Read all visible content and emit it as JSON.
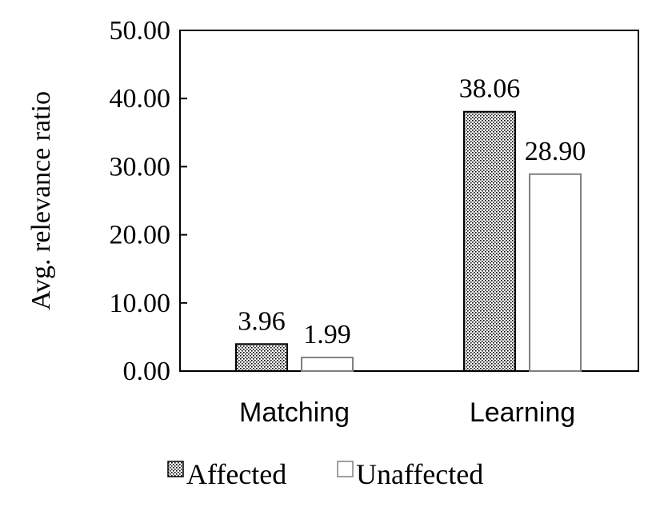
{
  "chart_data": {
    "type": "bar",
    "categories": [
      "Matching",
      "Learning"
    ],
    "series": [
      {
        "name": "Affected",
        "values": [
          3.96,
          38.06
        ],
        "labels": [
          "3.96",
          "38.06"
        ],
        "pattern": "dotted",
        "color": "#000000"
      },
      {
        "name": "Unaffected",
        "values": [
          1.99,
          28.9
        ],
        "labels": [
          "1.99",
          "28.90"
        ],
        "pattern": "none",
        "color": "#808080"
      }
    ],
    "ylabel": "Avg. relevance ratio",
    "xlabel": "",
    "ylim": [
      0,
      50
    ],
    "yticks": [
      "0.00",
      "10.00",
      "20.00",
      "30.00",
      "40.00",
      "50.00"
    ],
    "legend_position": "bottom",
    "grid": false
  }
}
